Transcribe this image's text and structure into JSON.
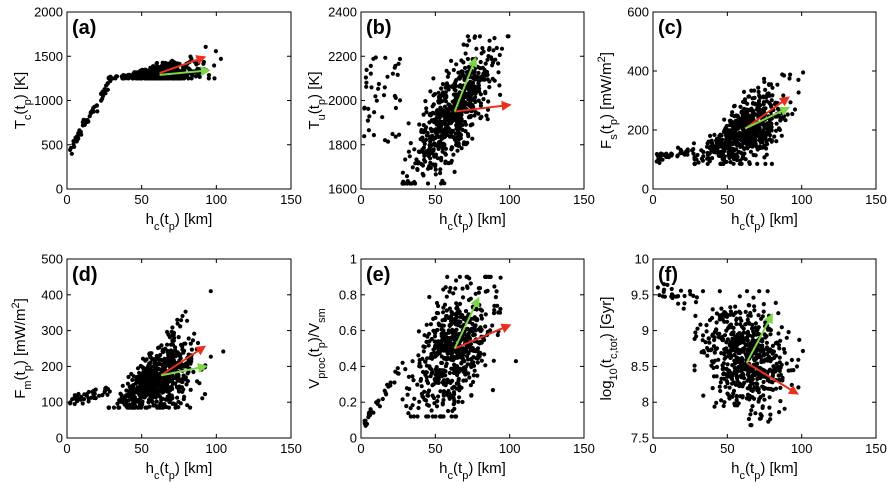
{
  "colors": {
    "red_arrow": "#e8301e",
    "green_arrow": "#7cd648",
    "points": "#000000"
  },
  "chart_data": [
    {
      "type": "scatter",
      "panel": "(a)",
      "xlabel": "h_c(t_p) [km]",
      "ylabel": "T_c(t_p) [K]",
      "xlim": [
        0,
        150
      ],
      "ylim": [
        0,
        2000
      ],
      "xticks": [
        "0",
        "50",
        "100",
        "150"
      ],
      "yticks": [
        "0",
        "500",
        "1000",
        "1500",
        "2000"
      ],
      "xtick_values": [
        0,
        50,
        100,
        150
      ],
      "ytick_values": [
        0,
        500,
        1000,
        1500,
        2000
      ],
      "arrows": [
        {
          "color": "red",
          "from": [
            62,
            1310
          ],
          "to": [
            92,
            1490
          ]
        },
        {
          "color": "green",
          "from": [
            62,
            1290
          ],
          "to": [
            95,
            1340
          ]
        }
      ],
      "points_model": {
        "n": 600,
        "seed": 11,
        "kind": "temp"
      }
    },
    {
      "type": "scatter",
      "panel": "(b)",
      "xlabel": "h_c(t_p) [km]",
      "ylabel": "T_u(t_p) [K]",
      "xlim": [
        0,
        150
      ],
      "ylim": [
        1600,
        2400
      ],
      "xticks": [
        "0",
        "50",
        "100",
        "150"
      ],
      "yticks": [
        "1600",
        "1800",
        "2000",
        "2200",
        "2400"
      ],
      "xtick_values": [
        0,
        50,
        100,
        150
      ],
      "ytick_values": [
        1600,
        1800,
        2000,
        2200,
        2400
      ],
      "arrows": [
        {
          "color": "red",
          "from": [
            63,
            1950
          ],
          "to": [
            100,
            1980
          ]
        },
        {
          "color": "green",
          "from": [
            63,
            1950
          ],
          "to": [
            77,
            2190
          ]
        }
      ],
      "points_model": {
        "n": 700,
        "seed": 23,
        "kind": "tu"
      }
    },
    {
      "type": "scatter",
      "panel": "(c)",
      "xlabel": "h_c(t_p) [km]",
      "ylabel": "F_s(t_p) [mW/m^2]",
      "xlim": [
        0,
        150
      ],
      "ylim": [
        0,
        600
      ],
      "xticks": [
        "0",
        "50",
        "100",
        "150"
      ],
      "yticks": [
        "0",
        "200",
        "400",
        "600"
      ],
      "xtick_values": [
        0,
        50,
        100,
        150
      ],
      "ytick_values": [
        0,
        200,
        400,
        600
      ],
      "arrows": [
        {
          "color": "red",
          "from": [
            62,
            205
          ],
          "to": [
            91,
            310
          ]
        },
        {
          "color": "green",
          "from": [
            62,
            205
          ],
          "to": [
            91,
            275
          ]
        }
      ],
      "points_model": {
        "n": 700,
        "seed": 37,
        "kind": "fs"
      }
    },
    {
      "type": "scatter",
      "panel": "(d)",
      "xlabel": "h_c(t_p) [km]",
      "ylabel": "F_m(t_p) [mW/m^2]",
      "xlim": [
        0,
        150
      ],
      "ylim": [
        0,
        500
      ],
      "xticks": [
        "0",
        "50",
        "100",
        "150"
      ],
      "yticks": [
        "0",
        "100",
        "200",
        "300",
        "400",
        "500"
      ],
      "xtick_values": [
        0,
        50,
        100,
        150
      ],
      "ytick_values": [
        0,
        100,
        200,
        300,
        400,
        500
      ],
      "arrows": [
        {
          "color": "red",
          "from": [
            63,
            175
          ],
          "to": [
            92,
            255
          ]
        },
        {
          "color": "green",
          "from": [
            63,
            175
          ],
          "to": [
            93,
            200
          ]
        }
      ],
      "points_model": {
        "n": 700,
        "seed": 41,
        "kind": "fm"
      }
    },
    {
      "type": "scatter",
      "panel": "(e)",
      "xlabel": "h_c(t_p) [km]",
      "ylabel": "V_proc(t_p)/V_sm",
      "xlim": [
        0,
        150
      ],
      "ylim": [
        0,
        1
      ],
      "xticks": [
        "0",
        "50",
        "100",
        "150"
      ],
      "yticks": [
        "0",
        "0.2",
        "0.4",
        "0.6",
        "0.8",
        "1"
      ],
      "xtick_values": [
        0,
        50,
        100,
        150
      ],
      "ytick_values": [
        0,
        0.2,
        0.4,
        0.6,
        0.8,
        1
      ],
      "arrows": [
        {
          "color": "red",
          "from": [
            63,
            0.5
          ],
          "to": [
            100,
            0.63
          ]
        },
        {
          "color": "green",
          "from": [
            63,
            0.5
          ],
          "to": [
            79,
            0.78
          ]
        }
      ],
      "points_model": {
        "n": 650,
        "seed": 53,
        "kind": "v"
      }
    },
    {
      "type": "scatter",
      "panel": "(f)",
      "xlabel": "h_c(t_p) [km]",
      "ylabel": "log10(t_c,tot) [Gyr]",
      "xlim": [
        0,
        150
      ],
      "ylim": [
        7.5,
        10
      ],
      "xticks": [
        "0",
        "50",
        "100",
        "150"
      ],
      "yticks": [
        "7.5",
        "8",
        "8.5",
        "9",
        "9.5",
        "10"
      ],
      "xtick_values": [
        0,
        50,
        100,
        150
      ],
      "ytick_values": [
        7.5,
        8,
        8.5,
        9,
        9.5,
        10
      ],
      "arrows": [
        {
          "color": "red",
          "from": [
            63,
            8.55
          ],
          "to": [
            97,
            8.12
          ]
        },
        {
          "color": "green",
          "from": [
            63,
            8.55
          ],
          "to": [
            80,
            9.22
          ]
        }
      ],
      "points_model": {
        "n": 650,
        "seed": 67,
        "kind": "t"
      }
    }
  ]
}
